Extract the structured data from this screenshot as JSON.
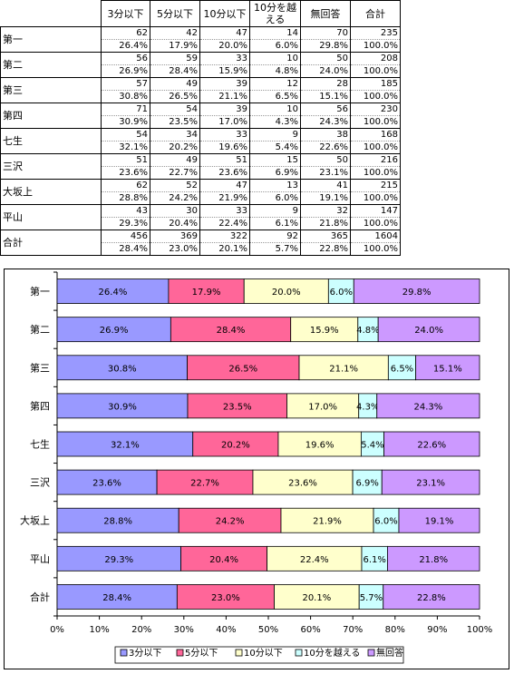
{
  "table": {
    "headers": [
      "3分以下",
      "5分以下",
      "10分以下",
      "10分を越える",
      "無回答",
      "合計"
    ],
    "rows": [
      {
        "label": "第一",
        "counts": [
          "62",
          "42",
          "47",
          "14",
          "70",
          "235"
        ],
        "pcts": [
          "26.4%",
          "17.9%",
          "20.0%",
          "6.0%",
          "29.8%",
          "100.0%"
        ]
      },
      {
        "label": "第二",
        "counts": [
          "56",
          "59",
          "33",
          "10",
          "50",
          "208"
        ],
        "pcts": [
          "26.9%",
          "28.4%",
          "15.9%",
          "4.8%",
          "24.0%",
          "100.0%"
        ]
      },
      {
        "label": "第三",
        "counts": [
          "57",
          "49",
          "39",
          "12",
          "28",
          "185"
        ],
        "pcts": [
          "30.8%",
          "26.5%",
          "21.1%",
          "6.5%",
          "15.1%",
          "100.0%"
        ]
      },
      {
        "label": "第四",
        "counts": [
          "71",
          "54",
          "39",
          "10",
          "56",
          "230"
        ],
        "pcts": [
          "30.9%",
          "23.5%",
          "17.0%",
          "4.3%",
          "24.3%",
          "100.0%"
        ]
      },
      {
        "label": "七生",
        "counts": [
          "54",
          "34",
          "33",
          "9",
          "38",
          "168"
        ],
        "pcts": [
          "32.1%",
          "20.2%",
          "19.6%",
          "5.4%",
          "22.6%",
          "100.0%"
        ]
      },
      {
        "label": "三沢",
        "counts": [
          "51",
          "49",
          "51",
          "15",
          "50",
          "216"
        ],
        "pcts": [
          "23.6%",
          "22.7%",
          "23.6%",
          "6.9%",
          "23.1%",
          "100.0%"
        ]
      },
      {
        "label": "大坂上",
        "counts": [
          "62",
          "52",
          "47",
          "13",
          "41",
          "215"
        ],
        "pcts": [
          "28.8%",
          "24.2%",
          "21.9%",
          "6.0%",
          "19.1%",
          "100.0%"
        ]
      },
      {
        "label": "平山",
        "counts": [
          "43",
          "30",
          "33",
          "9",
          "32",
          "147"
        ],
        "pcts": [
          "29.3%",
          "20.4%",
          "22.4%",
          "6.1%",
          "21.8%",
          "100.0%"
        ]
      },
      {
        "label": "合計",
        "counts": [
          "456",
          "369",
          "322",
          "92",
          "365",
          "1604"
        ],
        "pcts": [
          "28.4%",
          "23.0%",
          "20.1%",
          "5.7%",
          "22.8%",
          "100.0%"
        ]
      }
    ]
  },
  "chart_data": {
    "type": "bar",
    "orientation": "horizontal",
    "stacked": true,
    "percent_stacked": true,
    "categories": [
      "第一",
      "第二",
      "第三",
      "第四",
      "七生",
      "三沢",
      "大坂上",
      "平山",
      "合計"
    ],
    "series": [
      {
        "name": "3分以下",
        "color": "#9999ff",
        "values": [
          26.4,
          26.9,
          30.8,
          30.9,
          32.1,
          23.6,
          28.8,
          29.3,
          28.4
        ]
      },
      {
        "name": "5分以下",
        "color": "#ff6699",
        "values": [
          17.9,
          28.4,
          26.5,
          23.5,
          20.2,
          22.7,
          24.2,
          20.4,
          23.0
        ]
      },
      {
        "name": "10分以下",
        "color": "#ffffcc",
        "values": [
          20.0,
          15.9,
          21.1,
          17.0,
          19.6,
          23.6,
          21.9,
          22.4,
          20.1
        ]
      },
      {
        "name": "10分を越える",
        "color": "#ccffff",
        "values": [
          6.0,
          4.8,
          6.5,
          4.3,
          5.4,
          6.9,
          6.0,
          6.1,
          5.7
        ]
      },
      {
        "name": "無回答",
        "color": "#cc99ff",
        "values": [
          29.8,
          24.0,
          15.1,
          24.3,
          22.6,
          23.1,
          19.1,
          21.8,
          22.8
        ]
      }
    ],
    "xlim": [
      0,
      100
    ],
    "xticks": [
      "0%",
      "10%",
      "20%",
      "30%",
      "40%",
      "50%",
      "60%",
      "70%",
      "80%",
      "90%",
      "100%"
    ],
    "legend_position": "bottom",
    "grid": false,
    "title": "",
    "xlabel": "",
    "ylabel": ""
  }
}
